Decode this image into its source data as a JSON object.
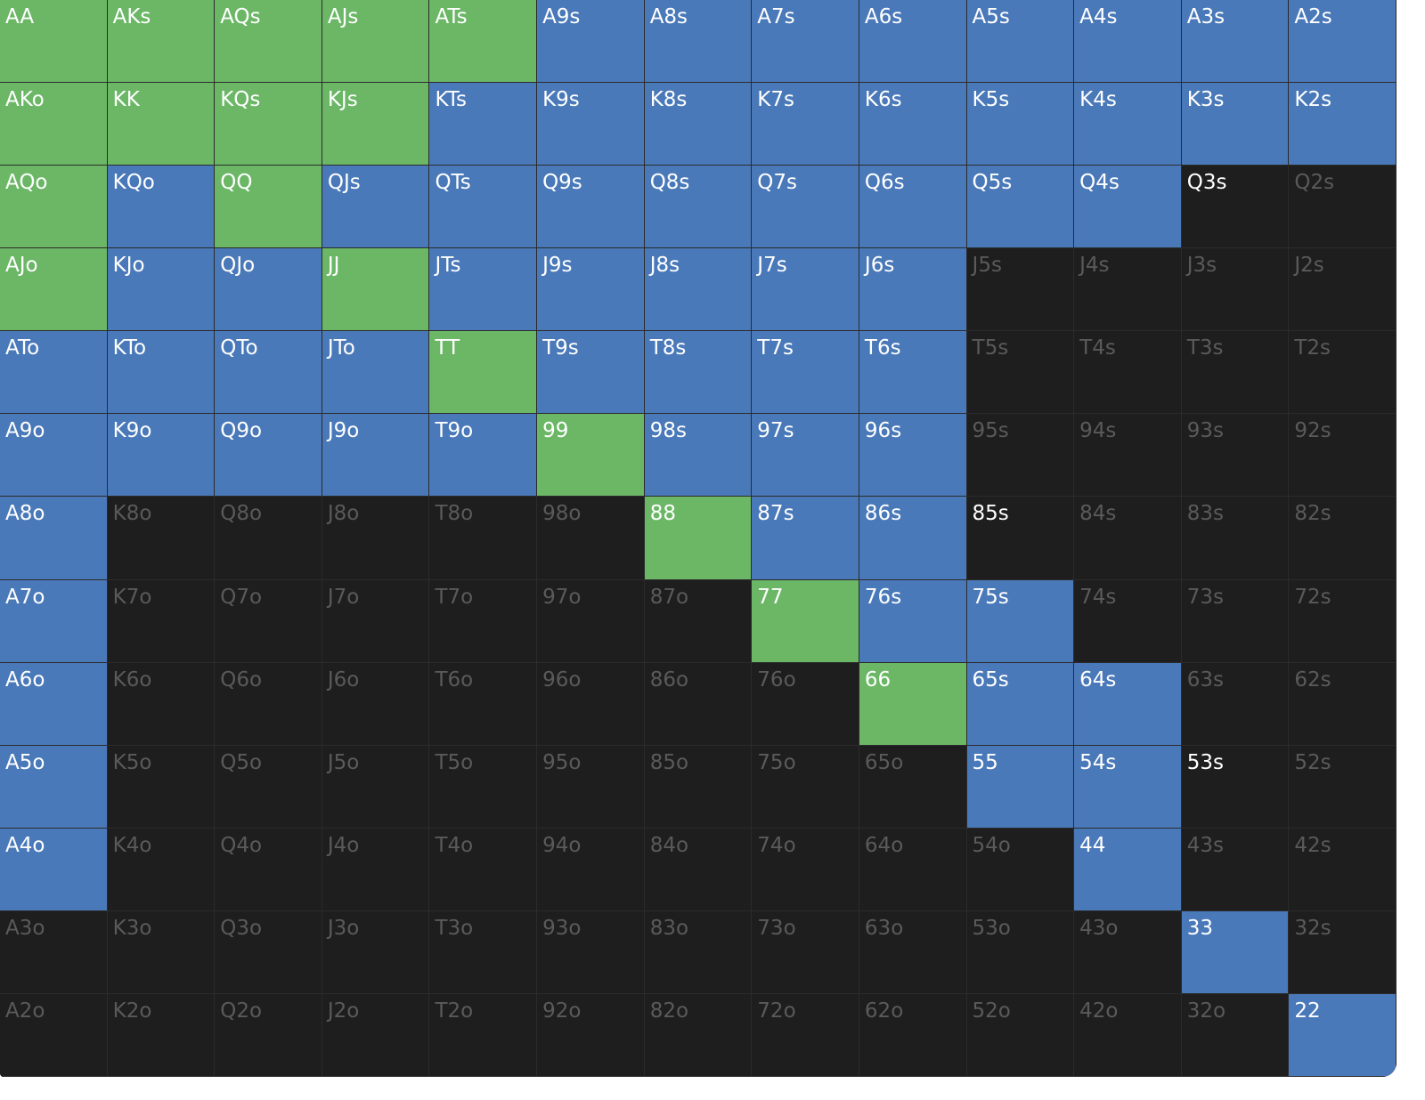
{
  "grid": {
    "rows": [
      [
        {
          "label": "AA",
          "fill": "#6bb766",
          "ink": "#ffffff"
        },
        {
          "label": "AKs",
          "fill": "#6bb766",
          "ink": "#ffffff"
        },
        {
          "label": "AQs",
          "fill": "#6bb766",
          "ink": "#ffffff"
        },
        {
          "label": "AJs",
          "fill": "#6bb766",
          "ink": "#ffffff"
        },
        {
          "label": "ATs",
          "fill": "#6bb766",
          "ink": "#ffffff"
        },
        {
          "label": "A9s",
          "fill": "#4a79b9",
          "ink": "#ffffff"
        },
        {
          "label": "A8s",
          "fill": "#4a79b9",
          "ink": "#ffffff"
        },
        {
          "label": "A7s",
          "fill": "#4a79b9",
          "ink": "#ffffff"
        },
        {
          "label": "A6s",
          "fill": "#4a79b9",
          "ink": "#ffffff"
        },
        {
          "label": "A5s",
          "fill": "#4a79b9",
          "ink": "#ffffff"
        },
        {
          "label": "A4s",
          "fill": "#4a79b9",
          "ink": "#ffffff"
        },
        {
          "label": "A3s",
          "fill": "#4a79b9",
          "ink": "#ffffff"
        },
        {
          "label": "A2s",
          "fill": "#4a79b9",
          "ink": "#ffffff"
        }
      ],
      [
        {
          "label": "AKo",
          "fill": "#6bb766",
          "ink": "#ffffff"
        },
        {
          "label": "KK",
          "fill": "#6bb766",
          "ink": "#ffffff"
        },
        {
          "label": "KQs",
          "fill": "#6bb766",
          "ink": "#ffffff"
        },
        {
          "label": "KJs",
          "fill": "#6bb766",
          "ink": "#ffffff"
        },
        {
          "label": "KTs",
          "fill": "#4a79b9",
          "ink": "#ffffff"
        },
        {
          "label": "K9s",
          "fill": "#4a79b9",
          "ink": "#ffffff"
        },
        {
          "label": "K8s",
          "fill": "#4a79b9",
          "ink": "#ffffff"
        },
        {
          "label": "K7s",
          "fill": "#4a79b9",
          "ink": "#ffffff"
        },
        {
          "label": "K6s",
          "fill": "#4a79b9",
          "ink": "#ffffff"
        },
        {
          "label": "K5s",
          "fill": "#4a79b9",
          "ink": "#ffffff"
        },
        {
          "label": "K4s",
          "fill": "#4a79b9",
          "ink": "#ffffff"
        },
        {
          "label": "K3s",
          "fill": "#4a79b9",
          "ink": "#ffffff"
        },
        {
          "label": "K2s",
          "fill": "#4a79b9",
          "ink": "#ffffff"
        }
      ],
      [
        {
          "label": "AQo",
          "fill": "#6bb766",
          "ink": "#ffffff"
        },
        {
          "label": "KQo",
          "fill": "#4a79b9",
          "ink": "#ffffff"
        },
        {
          "label": "QQ",
          "fill": "#6bb766",
          "ink": "#ffffff"
        },
        {
          "label": "QJs",
          "fill": "#4a79b9",
          "ink": "#ffffff"
        },
        {
          "label": "QTs",
          "fill": "#4a79b9",
          "ink": "#ffffff"
        },
        {
          "label": "Q9s",
          "fill": "#4a79b9",
          "ink": "#ffffff"
        },
        {
          "label": "Q8s",
          "fill": "#4a79b9",
          "ink": "#ffffff"
        },
        {
          "label": "Q7s",
          "fill": "#4a79b9",
          "ink": "#ffffff"
        },
        {
          "label": "Q6s",
          "fill": "#4a79b9",
          "ink": "#ffffff"
        },
        {
          "label": "Q5s",
          "fill": "#4a79b9",
          "ink": "#ffffff"
        },
        {
          "label": "Q4s",
          "fill": "#4a79b9",
          "ink": "#ffffff"
        },
        {
          "label": "Q3s",
          "fill": "#1e1e1e",
          "ink": "#ffffff"
        },
        {
          "label": "Q2s",
          "fill": "#1e1e1e",
          "ink": "#5a5a5a"
        }
      ],
      [
        {
          "label": "AJo",
          "fill": "#6bb766",
          "ink": "#ffffff"
        },
        {
          "label": "KJo",
          "fill": "#4a79b9",
          "ink": "#ffffff"
        },
        {
          "label": "QJo",
          "fill": "#4a79b9",
          "ink": "#ffffff"
        },
        {
          "label": "JJ",
          "fill": "#6bb766",
          "ink": "#ffffff"
        },
        {
          "label": "JTs",
          "fill": "#4a79b9",
          "ink": "#ffffff"
        },
        {
          "label": "J9s",
          "fill": "#4a79b9",
          "ink": "#ffffff"
        },
        {
          "label": "J8s",
          "fill": "#4a79b9",
          "ink": "#ffffff"
        },
        {
          "label": "J7s",
          "fill": "#4a79b9",
          "ink": "#ffffff"
        },
        {
          "label": "J6s",
          "fill": "#4a79b9",
          "ink": "#ffffff"
        },
        {
          "label": "J5s",
          "fill": "#1e1e1e",
          "ink": "#5a5a5a"
        },
        {
          "label": "J4s",
          "fill": "#1e1e1e",
          "ink": "#5a5a5a"
        },
        {
          "label": "J3s",
          "fill": "#1e1e1e",
          "ink": "#5a5a5a"
        },
        {
          "label": "J2s",
          "fill": "#1e1e1e",
          "ink": "#5a5a5a"
        }
      ],
      [
        {
          "label": "ATo",
          "fill": "#4a79b9",
          "ink": "#ffffff"
        },
        {
          "label": "KTo",
          "fill": "#4a79b9",
          "ink": "#ffffff"
        },
        {
          "label": "QTo",
          "fill": "#4a79b9",
          "ink": "#ffffff"
        },
        {
          "label": "JTo",
          "fill": "#4a79b9",
          "ink": "#ffffff"
        },
        {
          "label": "TT",
          "fill": "#6bb766",
          "ink": "#ffffff"
        },
        {
          "label": "T9s",
          "fill": "#4a79b9",
          "ink": "#ffffff"
        },
        {
          "label": "T8s",
          "fill": "#4a79b9",
          "ink": "#ffffff"
        },
        {
          "label": "T7s",
          "fill": "#4a79b9",
          "ink": "#ffffff"
        },
        {
          "label": "T6s",
          "fill": "#4a79b9",
          "ink": "#ffffff"
        },
        {
          "label": "T5s",
          "fill": "#1e1e1e",
          "ink": "#5a5a5a"
        },
        {
          "label": "T4s",
          "fill": "#1e1e1e",
          "ink": "#5a5a5a"
        },
        {
          "label": "T3s",
          "fill": "#1e1e1e",
          "ink": "#5a5a5a"
        },
        {
          "label": "T2s",
          "fill": "#1e1e1e",
          "ink": "#5a5a5a"
        }
      ],
      [
        {
          "label": "A9o",
          "fill": "#4a79b9",
          "ink": "#ffffff"
        },
        {
          "label": "K9o",
          "fill": "#4a79b9",
          "ink": "#ffffff"
        },
        {
          "label": "Q9o",
          "fill": "#4a79b9",
          "ink": "#ffffff"
        },
        {
          "label": "J9o",
          "fill": "#4a79b9",
          "ink": "#ffffff"
        },
        {
          "label": "T9o",
          "fill": "#4a79b9",
          "ink": "#ffffff"
        },
        {
          "label": "99",
          "fill": "#6bb766",
          "ink": "#ffffff"
        },
        {
          "label": "98s",
          "fill": "#4a79b9",
          "ink": "#ffffff"
        },
        {
          "label": "97s",
          "fill": "#4a79b9",
          "ink": "#ffffff"
        },
        {
          "label": "96s",
          "fill": "#4a79b9",
          "ink": "#ffffff"
        },
        {
          "label": "95s",
          "fill": "#1e1e1e",
          "ink": "#5a5a5a"
        },
        {
          "label": "94s",
          "fill": "#1e1e1e",
          "ink": "#5a5a5a"
        },
        {
          "label": "93s",
          "fill": "#1e1e1e",
          "ink": "#5a5a5a"
        },
        {
          "label": "92s",
          "fill": "#1e1e1e",
          "ink": "#5a5a5a"
        }
      ],
      [
        {
          "label": "A8o",
          "fill": "#4a79b9",
          "ink": "#ffffff"
        },
        {
          "label": "K8o",
          "fill": "#1e1e1e",
          "ink": "#5a5a5a"
        },
        {
          "label": "Q8o",
          "fill": "#1e1e1e",
          "ink": "#5a5a5a"
        },
        {
          "label": "J8o",
          "fill": "#1e1e1e",
          "ink": "#5a5a5a"
        },
        {
          "label": "T8o",
          "fill": "#1e1e1e",
          "ink": "#5a5a5a"
        },
        {
          "label": "98o",
          "fill": "#1e1e1e",
          "ink": "#5a5a5a"
        },
        {
          "label": "88",
          "fill": "#6bb766",
          "ink": "#ffffff"
        },
        {
          "label": "87s",
          "fill": "#4a79b9",
          "ink": "#ffffff"
        },
        {
          "label": "86s",
          "fill": "#4a79b9",
          "ink": "#ffffff"
        },
        {
          "label": "85s",
          "fill": "#1e1e1e",
          "ink": "#ffffff"
        },
        {
          "label": "84s",
          "fill": "#1e1e1e",
          "ink": "#5a5a5a"
        },
        {
          "label": "83s",
          "fill": "#1e1e1e",
          "ink": "#5a5a5a"
        },
        {
          "label": "82s",
          "fill": "#1e1e1e",
          "ink": "#5a5a5a"
        }
      ],
      [
        {
          "label": "A7o",
          "fill": "#4a79b9",
          "ink": "#ffffff"
        },
        {
          "label": "K7o",
          "fill": "#1e1e1e",
          "ink": "#5a5a5a"
        },
        {
          "label": "Q7o",
          "fill": "#1e1e1e",
          "ink": "#5a5a5a"
        },
        {
          "label": "J7o",
          "fill": "#1e1e1e",
          "ink": "#5a5a5a"
        },
        {
          "label": "T7o",
          "fill": "#1e1e1e",
          "ink": "#5a5a5a"
        },
        {
          "label": "97o",
          "fill": "#1e1e1e",
          "ink": "#5a5a5a"
        },
        {
          "label": "87o",
          "fill": "#1e1e1e",
          "ink": "#5a5a5a"
        },
        {
          "label": "77",
          "fill": "#6bb766",
          "ink": "#ffffff"
        },
        {
          "label": "76s",
          "fill": "#4a79b9",
          "ink": "#ffffff"
        },
        {
          "label": "75s",
          "fill": "#4a79b9",
          "ink": "#ffffff"
        },
        {
          "label": "74s",
          "fill": "#1e1e1e",
          "ink": "#5a5a5a"
        },
        {
          "label": "73s",
          "fill": "#1e1e1e",
          "ink": "#5a5a5a"
        },
        {
          "label": "72s",
          "fill": "#1e1e1e",
          "ink": "#5a5a5a"
        }
      ],
      [
        {
          "label": "A6o",
          "fill": "#4a79b9",
          "ink": "#ffffff"
        },
        {
          "label": "K6o",
          "fill": "#1e1e1e",
          "ink": "#5a5a5a"
        },
        {
          "label": "Q6o",
          "fill": "#1e1e1e",
          "ink": "#5a5a5a"
        },
        {
          "label": "J6o",
          "fill": "#1e1e1e",
          "ink": "#5a5a5a"
        },
        {
          "label": "T6o",
          "fill": "#1e1e1e",
          "ink": "#5a5a5a"
        },
        {
          "label": "96o",
          "fill": "#1e1e1e",
          "ink": "#5a5a5a"
        },
        {
          "label": "86o",
          "fill": "#1e1e1e",
          "ink": "#5a5a5a"
        },
        {
          "label": "76o",
          "fill": "#1e1e1e",
          "ink": "#5a5a5a"
        },
        {
          "label": "66",
          "fill": "#6bb766",
          "ink": "#ffffff"
        },
        {
          "label": "65s",
          "fill": "#4a79b9",
          "ink": "#ffffff"
        },
        {
          "label": "64s",
          "fill": "#4a79b9",
          "ink": "#ffffff"
        },
        {
          "label": "63s",
          "fill": "#1e1e1e",
          "ink": "#5a5a5a"
        },
        {
          "label": "62s",
          "fill": "#1e1e1e",
          "ink": "#5a5a5a"
        }
      ],
      [
        {
          "label": "A5o",
          "fill": "#4a79b9",
          "ink": "#ffffff"
        },
        {
          "label": "K5o",
          "fill": "#1e1e1e",
          "ink": "#5a5a5a"
        },
        {
          "label": "Q5o",
          "fill": "#1e1e1e",
          "ink": "#5a5a5a"
        },
        {
          "label": "J5o",
          "fill": "#1e1e1e",
          "ink": "#5a5a5a"
        },
        {
          "label": "T5o",
          "fill": "#1e1e1e",
          "ink": "#5a5a5a"
        },
        {
          "label": "95o",
          "fill": "#1e1e1e",
          "ink": "#5a5a5a"
        },
        {
          "label": "85o",
          "fill": "#1e1e1e",
          "ink": "#5a5a5a"
        },
        {
          "label": "75o",
          "fill": "#1e1e1e",
          "ink": "#5a5a5a"
        },
        {
          "label": "65o",
          "fill": "#1e1e1e",
          "ink": "#5a5a5a"
        },
        {
          "label": "55",
          "fill": "#4a79b9",
          "ink": "#ffffff"
        },
        {
          "label": "54s",
          "fill": "#4a79b9",
          "ink": "#ffffff"
        },
        {
          "label": "53s",
          "fill": "#1e1e1e",
          "ink": "#ffffff"
        },
        {
          "label": "52s",
          "fill": "#1e1e1e",
          "ink": "#5a5a5a"
        }
      ],
      [
        {
          "label": "A4o",
          "fill": "#4a79b9",
          "ink": "#ffffff"
        },
        {
          "label": "K4o",
          "fill": "#1e1e1e",
          "ink": "#5a5a5a"
        },
        {
          "label": "Q4o",
          "fill": "#1e1e1e",
          "ink": "#5a5a5a"
        },
        {
          "label": "J4o",
          "fill": "#1e1e1e",
          "ink": "#5a5a5a"
        },
        {
          "label": "T4o",
          "fill": "#1e1e1e",
          "ink": "#5a5a5a"
        },
        {
          "label": "94o",
          "fill": "#1e1e1e",
          "ink": "#5a5a5a"
        },
        {
          "label": "84o",
          "fill": "#1e1e1e",
          "ink": "#5a5a5a"
        },
        {
          "label": "74o",
          "fill": "#1e1e1e",
          "ink": "#5a5a5a"
        },
        {
          "label": "64o",
          "fill": "#1e1e1e",
          "ink": "#5a5a5a"
        },
        {
          "label": "54o",
          "fill": "#1e1e1e",
          "ink": "#5a5a5a"
        },
        {
          "label": "44",
          "fill": "#4a79b9",
          "ink": "#ffffff"
        },
        {
          "label": "43s",
          "fill": "#1e1e1e",
          "ink": "#5a5a5a"
        },
        {
          "label": "42s",
          "fill": "#1e1e1e",
          "ink": "#5a5a5a"
        }
      ],
      [
        {
          "label": "A3o",
          "fill": "#1e1e1e",
          "ink": "#5a5a5a"
        },
        {
          "label": "K3o",
          "fill": "#1e1e1e",
          "ink": "#5a5a5a"
        },
        {
          "label": "Q3o",
          "fill": "#1e1e1e",
          "ink": "#5a5a5a"
        },
        {
          "label": "J3o",
          "fill": "#1e1e1e",
          "ink": "#5a5a5a"
        },
        {
          "label": "T3o",
          "fill": "#1e1e1e",
          "ink": "#5a5a5a"
        },
        {
          "label": "93o",
          "fill": "#1e1e1e",
          "ink": "#5a5a5a"
        },
        {
          "label": "83o",
          "fill": "#1e1e1e",
          "ink": "#5a5a5a"
        },
        {
          "label": "73o",
          "fill": "#1e1e1e",
          "ink": "#5a5a5a"
        },
        {
          "label": "63o",
          "fill": "#1e1e1e",
          "ink": "#5a5a5a"
        },
        {
          "label": "53o",
          "fill": "#1e1e1e",
          "ink": "#5a5a5a"
        },
        {
          "label": "43o",
          "fill": "#1e1e1e",
          "ink": "#5a5a5a"
        },
        {
          "label": "33",
          "fill": "#4a79b9",
          "ink": "#ffffff"
        },
        {
          "label": "32s",
          "fill": "#1e1e1e",
          "ink": "#5a5a5a"
        }
      ],
      [
        {
          "label": "A2o",
          "fill": "#1e1e1e",
          "ink": "#5a5a5a"
        },
        {
          "label": "K2o",
          "fill": "#1e1e1e",
          "ink": "#5a5a5a"
        },
        {
          "label": "Q2o",
          "fill": "#1e1e1e",
          "ink": "#5a5a5a"
        },
        {
          "label": "J2o",
          "fill": "#1e1e1e",
          "ink": "#5a5a5a"
        },
        {
          "label": "T2o",
          "fill": "#1e1e1e",
          "ink": "#5a5a5a"
        },
        {
          "label": "92o",
          "fill": "#1e1e1e",
          "ink": "#5a5a5a"
        },
        {
          "label": "82o",
          "fill": "#1e1e1e",
          "ink": "#5a5a5a"
        },
        {
          "label": "72o",
          "fill": "#1e1e1e",
          "ink": "#5a5a5a"
        },
        {
          "label": "62o",
          "fill": "#1e1e1e",
          "ink": "#5a5a5a"
        },
        {
          "label": "52o",
          "fill": "#1e1e1e",
          "ink": "#5a5a5a"
        },
        {
          "label": "42o",
          "fill": "#1e1e1e",
          "ink": "#5a5a5a"
        },
        {
          "label": "32o",
          "fill": "#1e1e1e",
          "ink": "#5a5a5a"
        },
        {
          "label": "22",
          "fill": "#4a79b9",
          "ink": "#ffffff"
        }
      ]
    ]
  }
}
